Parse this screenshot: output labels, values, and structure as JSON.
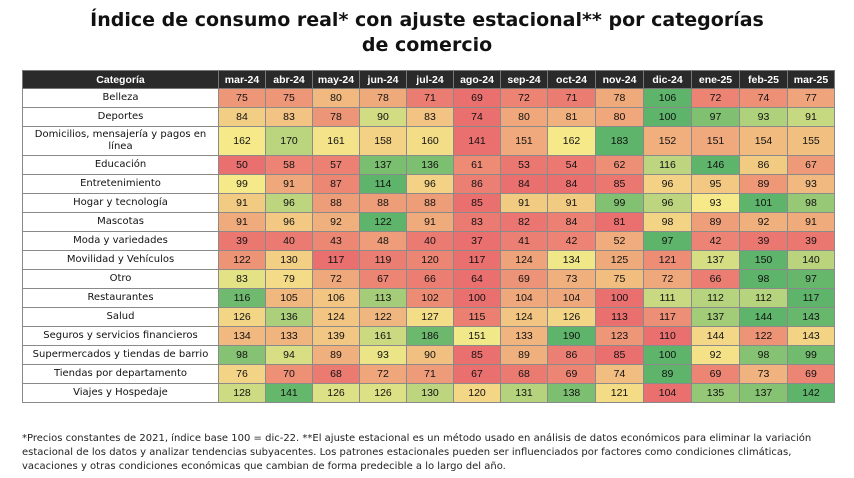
{
  "title_line1": "Índice de consumo real* con ajuste estacional** por categorías",
  "title_line2": "de comercio",
  "chart_data": {
    "type": "heatmap",
    "title": "Índice de consumo real* con ajuste estacional** por categorías de comercio",
    "row_header": "Categoría",
    "columns": [
      "mar-24",
      "abr-24",
      "may-24",
      "jun-24",
      "jul-24",
      "ago-24",
      "sep-24",
      "oct-24",
      "nov-24",
      "dic-24",
      "ene-25",
      "feb-25",
      "mar-25"
    ],
    "rows": [
      {
        "label": "Belleza",
        "values": [
          75,
          75,
          80,
          78,
          71,
          69,
          72,
          71,
          78,
          106,
          72,
          74,
          77
        ]
      },
      {
        "label": "Deportes",
        "values": [
          84,
          83,
          78,
          90,
          83,
          74,
          80,
          81,
          80,
          100,
          97,
          93,
          91
        ]
      },
      {
        "label": "Domicilios, mensajería y pagos en línea",
        "values": [
          162,
          170,
          161,
          158,
          160,
          141,
          151,
          162,
          183,
          152,
          151,
          154,
          155
        ]
      },
      {
        "label": "Educación",
        "values": [
          50,
          58,
          57,
          137,
          136,
          61,
          53,
          54,
          62,
          116,
          146,
          86,
          67
        ]
      },
      {
        "label": "Entretenimiento",
        "values": [
          99,
          91,
          87,
          114,
          96,
          86,
          84,
          84,
          85,
          96,
          95,
          89,
          93
        ]
      },
      {
        "label": "Hogar y tecnología",
        "values": [
          91,
          96,
          88,
          88,
          88,
          85,
          91,
          91,
          99,
          96,
          93,
          101,
          98
        ]
      },
      {
        "label": "Mascotas",
        "values": [
          91,
          96,
          92,
          122,
          91,
          83,
          82,
          84,
          81,
          98,
          89,
          92,
          91
        ]
      },
      {
        "label": "Moda y variedades",
        "values": [
          39,
          40,
          43,
          48,
          40,
          37,
          41,
          42,
          52,
          97,
          42,
          39,
          39
        ]
      },
      {
        "label": "Movilidad y Vehículos",
        "values": [
          122,
          130,
          117,
          119,
          120,
          117,
          124,
          134,
          125,
          121,
          137,
          150,
          140
        ]
      },
      {
        "label": "Otro",
        "values": [
          83,
          79,
          72,
          67,
          66,
          64,
          69,
          73,
          75,
          72,
          66,
          98,
          97
        ]
      },
      {
        "label": "Restaurantes",
        "values": [
          116,
          105,
          106,
          113,
          102,
          100,
          104,
          104,
          100,
          111,
          112,
          112,
          117
        ]
      },
      {
        "label": "Salud",
        "values": [
          126,
          136,
          124,
          122,
          127,
          115,
          124,
          126,
          113,
          117,
          137,
          144,
          143
        ]
      },
      {
        "label": "Seguros y servicios financieros",
        "values": [
          134,
          133,
          139,
          161,
          186,
          151,
          133,
          190,
          123,
          110,
          144,
          122,
          143
        ]
      },
      {
        "label": "Supermercados y tiendas de barrio",
        "values": [
          98,
          94,
          89,
          93,
          90,
          85,
          89,
          86,
          85,
          100,
          92,
          98,
          99
        ]
      },
      {
        "label": "Tiendas por departamento",
        "values": [
          76,
          70,
          68,
          72,
          71,
          67,
          68,
          69,
          74,
          89,
          69,
          73,
          69
        ]
      },
      {
        "label": "Viajes y Hospedaje",
        "values": [
          128,
          141,
          126,
          126,
          130,
          120,
          131,
          138,
          121,
          104,
          135,
          137,
          142
        ]
      }
    ],
    "color_scale": {
      "low": "#ea6f6f",
      "mid": "#f5e98a",
      "high": "#5db46a"
    }
  },
  "footnote": "*Precios constantes de 2021, índice base 100 = dic-22. **El ajuste estacional es un método usado en análisis de datos económicos para eliminar la variación estacional de los datos y analizar tendencias subyacentes. Los patrones estacionales pueden ser influenciados por factores como condiciones climáticas, vacaciones y otras condiciones económicas que cambian de forma predecible a lo largo del año."
}
